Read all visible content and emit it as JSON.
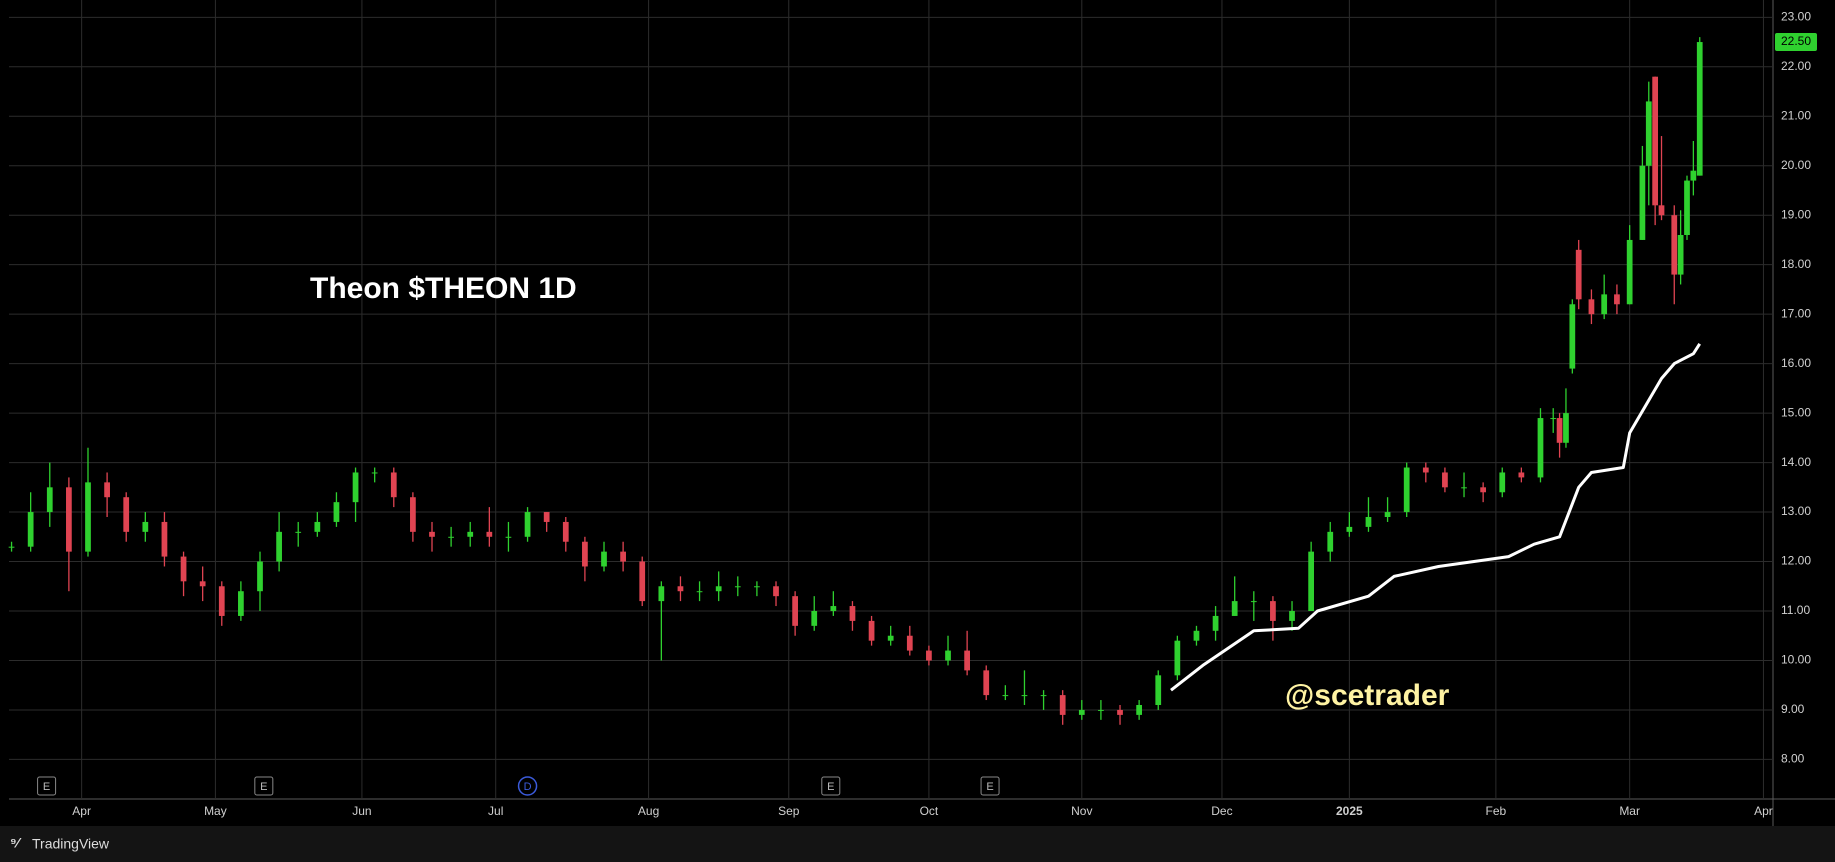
{
  "chart_data": {
    "type": "candlestick",
    "title": "Theon $THEON 1D",
    "watermark": "@scetrader",
    "x": [
      0,
      3,
      6,
      9,
      12,
      15,
      18,
      21,
      24,
      27,
      30,
      33,
      36,
      39,
      42,
      45,
      48,
      51,
      54,
      57,
      60,
      63,
      66,
      69,
      72,
      75,
      78,
      81,
      84,
      87,
      90,
      93,
      96,
      99,
      102,
      105,
      108,
      111,
      114,
      117,
      120,
      123,
      126,
      129,
      132,
      135,
      138,
      141,
      144,
      147,
      150,
      153,
      156,
      159,
      162,
      165,
      168,
      171,
      174,
      177,
      180,
      183,
      186,
      189,
      192,
      195,
      198,
      201,
      204,
      207,
      210,
      213,
      216,
      219,
      222,
      225,
      228,
      231,
      234,
      237,
      240,
      242,
      243,
      244,
      245,
      246,
      248,
      250,
      252,
      254,
      256,
      257,
      258,
      259,
      261,
      262,
      263,
      264,
      265
    ],
    "open": [
      12.3,
      12.3,
      13.0,
      13.5,
      12.2,
      13.6,
      13.3,
      12.6,
      12.8,
      12.1,
      11.6,
      11.5,
      10.9,
      11.4,
      12.0,
      12.6,
      12.6,
      12.8,
      13.2,
      13.8,
      13.8,
      13.3,
      12.6,
      12.5,
      12.5,
      12.6,
      12.5,
      12.5,
      13.0,
      12.8,
      12.4,
      11.9,
      12.2,
      12.0,
      11.2,
      11.5,
      11.4,
      11.4,
      11.5,
      11.5,
      11.5,
      11.3,
      10.7,
      11.0,
      11.1,
      10.8,
      10.4,
      10.5,
      10.2,
      10.0,
      10.2,
      9.8,
      9.3,
      9.3,
      9.3,
      9.3,
      8.9,
      9.0,
      9.0,
      8.9,
      9.1,
      9.7,
      10.4,
      10.6,
      10.9,
      11.2,
      11.2,
      10.8,
      11.0,
      12.2,
      12.6,
      12.7,
      12.9,
      13.0,
      13.9,
      13.8,
      13.5,
      13.5,
      13.4,
      13.8,
      13.7,
      14.9,
      14.9,
      14.4,
      15.9,
      18.3,
      17.3,
      17.0,
      17.4,
      17.2,
      18.5,
      20.0,
      21.8,
      19.2,
      19.0,
      17.8,
      18.6,
      19.7,
      19.8
    ],
    "high": [
      12.4,
      13.4,
      14.0,
      13.7,
      14.3,
      13.8,
      13.4,
      13.0,
      13.0,
      12.2,
      11.9,
      11.6,
      11.6,
      12.2,
      13.0,
      12.8,
      13.0,
      13.4,
      13.9,
      13.9,
      13.9,
      13.4,
      12.8,
      12.7,
      12.8,
      13.1,
      12.8,
      13.1,
      13.0,
      12.9,
      12.5,
      12.4,
      12.4,
      12.1,
      11.6,
      11.7,
      11.6,
      11.8,
      11.7,
      11.6,
      11.6,
      11.4,
      11.3,
      11.4,
      11.2,
      10.9,
      10.7,
      10.7,
      10.3,
      10.5,
      10.6,
      9.9,
      9.5,
      9.8,
      9.4,
      9.4,
      9.2,
      9.2,
      9.1,
      9.2,
      9.8,
      10.5,
      10.7,
      11.1,
      11.7,
      11.4,
      11.3,
      11.2,
      12.4,
      12.8,
      13.0,
      13.3,
      13.3,
      14.0,
      14.0,
      13.9,
      13.8,
      13.6,
      13.9,
      13.9,
      15.1,
      15.1,
      15.0,
      15.5,
      17.3,
      18.5,
      17.5,
      17.8,
      17.6,
      18.8,
      20.4,
      21.7,
      21.8,
      20.6,
      19.2,
      19.1,
      19.8,
      20.5,
      22.6
    ],
    "low": [
      12.2,
      12.2,
      12.7,
      11.4,
      12.1,
      12.9,
      12.4,
      12.4,
      11.9,
      11.3,
      11.2,
      10.7,
      10.8,
      11.0,
      11.8,
      12.3,
      12.5,
      12.7,
      12.8,
      13.6,
      13.1,
      12.4,
      12.2,
      12.3,
      12.3,
      12.3,
      12.2,
      12.4,
      12.6,
      12.2,
      11.6,
      11.8,
      11.8,
      11.1,
      10.0,
      11.2,
      11.2,
      11.2,
      11.3,
      11.3,
      11.1,
      10.5,
      10.6,
      10.9,
      10.6,
      10.3,
      10.3,
      10.1,
      9.9,
      9.9,
      9.7,
      9.2,
      9.2,
      9.1,
      9.0,
      8.7,
      8.8,
      8.8,
      8.7,
      8.8,
      9.0,
      9.6,
      10.3,
      10.4,
      10.9,
      10.8,
      10.4,
      10.6,
      11.0,
      12.0,
      12.5,
      12.6,
      12.8,
      12.9,
      13.6,
      13.4,
      13.3,
      13.2,
      13.3,
      13.6,
      13.6,
      14.6,
      14.1,
      14.3,
      15.8,
      17.1,
      16.8,
      16.9,
      17.0,
      17.2,
      18.5,
      19.2,
      18.8,
      18.9,
      17.2,
      17.6,
      18.5,
      19.4,
      19.8
    ],
    "close": [
      12.3,
      13.0,
      13.5,
      12.2,
      13.6,
      13.3,
      12.6,
      12.8,
      12.1,
      11.6,
      11.5,
      10.9,
      11.4,
      12.0,
      12.6,
      12.6,
      12.8,
      13.2,
      13.8,
      13.8,
      13.3,
      12.6,
      12.5,
      12.5,
      12.6,
      12.5,
      12.5,
      13.0,
      12.8,
      12.4,
      11.9,
      12.2,
      12.0,
      11.2,
      11.5,
      11.4,
      11.4,
      11.5,
      11.5,
      11.5,
      11.3,
      10.7,
      11.0,
      11.1,
      10.8,
      10.4,
      10.5,
      10.2,
      10.0,
      10.2,
      9.8,
      9.3,
      9.3,
      9.3,
      9.3,
      8.9,
      9.0,
      9.0,
      8.9,
      9.1,
      9.7,
      10.4,
      10.6,
      10.9,
      11.2,
      11.2,
      10.8,
      11.0,
      12.2,
      12.6,
      12.7,
      12.9,
      13.0,
      13.9,
      13.8,
      13.5,
      13.5,
      13.4,
      13.8,
      13.7,
      14.9,
      14.9,
      14.4,
      15.0,
      17.2,
      17.3,
      17.0,
      17.4,
      17.2,
      18.5,
      20.0,
      21.3,
      19.2,
      19.0,
      17.8,
      18.6,
      19.7,
      19.9,
      22.5
    ],
    "up_color": "#2fd12f",
    "down_color": "#e04452",
    "ma": {
      "color": "#ffffff",
      "x": [
        182,
        187,
        195,
        202,
        205,
        213,
        217,
        224,
        235,
        239,
        243,
        246,
        248,
        253,
        254,
        259,
        261,
        264,
        265
      ],
      "values": [
        9.4,
        9.9,
        10.6,
        10.65,
        11.0,
        11.3,
        11.7,
        11.9,
        12.1,
        12.35,
        12.5,
        13.5,
        13.8,
        13.9,
        14.6,
        15.7,
        16.0,
        16.2,
        16.4
      ]
    },
    "xlim": [
      -0.4,
      276.5
    ],
    "xticks": [
      {
        "value": 11,
        "label": "Apr"
      },
      {
        "value": 32,
        "label": "May"
      },
      {
        "value": 55,
        "label": "Jun"
      },
      {
        "value": 76,
        "label": "Jul"
      },
      {
        "value": 100,
        "label": "Aug"
      },
      {
        "value": 122,
        "label": "Sep"
      },
      {
        "value": 144,
        "label": "Oct"
      },
      {
        "value": 168,
        "label": "Nov"
      },
      {
        "value": 190,
        "label": "Dec"
      },
      {
        "value": 210,
        "label": "2025"
      },
      {
        "value": 233,
        "label": "Feb"
      },
      {
        "value": 254,
        "label": "Mar"
      },
      {
        "value": 275,
        "label": "Apr"
      }
    ],
    "ylim": [
      7.2,
      23.35
    ],
    "yticks": [
      {
        "value": 8,
        "label": "8.00"
      },
      {
        "value": 9,
        "label": "9.00"
      },
      {
        "value": 10,
        "label": "10.00"
      },
      {
        "value": 11,
        "label": "11.00"
      },
      {
        "value": 12,
        "label": "12.00"
      },
      {
        "value": 13,
        "label": "13.00"
      },
      {
        "value": 14,
        "label": "14.00"
      },
      {
        "value": 15,
        "label": "15.00"
      },
      {
        "value": 16,
        "label": "16.00"
      },
      {
        "value": 17,
        "label": "17.00"
      },
      {
        "value": 18,
        "label": "18.00"
      },
      {
        "value": 19,
        "label": "19.00"
      },
      {
        "value": 20,
        "label": "20.00"
      },
      {
        "value": 21,
        "label": "21.00"
      },
      {
        "value": 22,
        "label": "22.00"
      },
      {
        "value": 23,
        "label": "23.00"
      }
    ],
    "grid": true,
    "last_price": {
      "value": 22.5,
      "label": "22.50"
    },
    "events": [
      {
        "x": 5.5,
        "label": "E"
      },
      {
        "x": 39.6,
        "label": "E"
      },
      {
        "x": 81,
        "label": "D"
      },
      {
        "x": 128.6,
        "label": "E"
      },
      {
        "x": 153.6,
        "label": "E"
      }
    ]
  },
  "footer": {
    "brand": "TradingView"
  }
}
